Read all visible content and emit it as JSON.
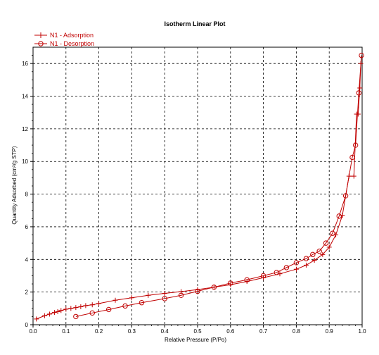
{
  "chart_data": {
    "type": "line",
    "title": "Isotherm Linear Plot",
    "xlabel": "Relative Pressure (P/Po)",
    "ylabel": "Quantity Adsorbed (cm³/g STP)",
    "xlim": [
      0,
      1.0
    ],
    "ylim": [
      0,
      17
    ],
    "xticks": [
      0,
      0.1,
      0.2,
      0.3,
      0.4,
      0.5,
      0.6,
      0.7,
      0.8,
      0.9,
      1
    ],
    "xtick_labels": [
      "0.0",
      "0.1",
      "0.2",
      "0.3",
      "0.4",
      "0.5",
      "0.6",
      "0.7",
      "0.8",
      "0.9",
      "1.0"
    ],
    "yticks": [
      0,
      2,
      4,
      6,
      8,
      10,
      12,
      14,
      16
    ],
    "ytick_labels": [
      "0",
      "2",
      "4",
      "6",
      "8",
      "10",
      "12",
      "14",
      "16"
    ],
    "grid": true,
    "legend_position": "top-left",
    "series": [
      {
        "name": "N1 - Adsorption",
        "color": "#c00000",
        "marker": "plus",
        "x": [
          0.01,
          0.035,
          0.05,
          0.065,
          0.075,
          0.085,
          0.1,
          0.115,
          0.13,
          0.145,
          0.16,
          0.18,
          0.2,
          0.25,
          0.3,
          0.35,
          0.4,
          0.45,
          0.5,
          0.55,
          0.6,
          0.65,
          0.7,
          0.75,
          0.8,
          0.83,
          0.855,
          0.88,
          0.9,
          0.92,
          0.94,
          0.96,
          0.975,
          0.983,
          0.988,
          0.993,
          0.996
        ],
        "y": [
          0.35,
          0.55,
          0.65,
          0.75,
          0.8,
          0.87,
          0.95,
          1.0,
          1.05,
          1.1,
          1.17,
          1.22,
          1.3,
          1.5,
          1.65,
          1.8,
          1.92,
          2.03,
          2.15,
          2.3,
          2.45,
          2.65,
          2.88,
          3.12,
          3.4,
          3.65,
          3.95,
          4.3,
          4.75,
          5.5,
          6.7,
          9.1,
          9.1,
          12.9,
          12.9,
          14.5,
          16.0
        ]
      },
      {
        "name": "N1 - Desorption",
        "color": "#c00000",
        "marker": "circle",
        "x": [
          0.998,
          0.99,
          0.98,
          0.97,
          0.95,
          0.93,
          0.91,
          0.89,
          0.87,
          0.85,
          0.83,
          0.8,
          0.77,
          0.74,
          0.7,
          0.65,
          0.6,
          0.55,
          0.5,
          0.45,
          0.4,
          0.33,
          0.28,
          0.23,
          0.18,
          0.13
        ],
        "y": [
          16.5,
          14.2,
          11.0,
          10.25,
          7.9,
          6.65,
          5.6,
          5.0,
          4.5,
          4.3,
          4.05,
          3.8,
          3.5,
          3.2,
          3.0,
          2.75,
          2.55,
          2.3,
          2.05,
          1.8,
          1.6,
          1.35,
          1.15,
          0.93,
          0.72,
          0.5
        ]
      }
    ]
  }
}
